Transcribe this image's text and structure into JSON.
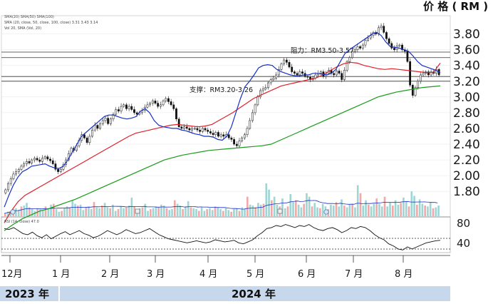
{
  "chart_data": {
    "type": "candlestick",
    "unit_label": "价 格 ( RM )",
    "legend_lines": [
      "SMA(20) SMA(50) SMA(100)",
      "SMA (20, close, 50, close, 100, close) 3.31 3.43 3.14",
      "Vol 20, SMA (Vol, 20)"
    ],
    "price_axis": {
      "ticks": [
        "3.80",
        "3.60",
        "3.40",
        "3.20",
        "3.00",
        "2.80",
        "2.60",
        "2.40",
        "2.20",
        "2.00",
        "1.80"
      ],
      "min": 1.62,
      "max": 3.96
    },
    "rsi_axis": {
      "ticks": [
        "80",
        "40"
      ]
    },
    "rsi_label": "RSI (14, close) 47.0",
    "x_ticks": [
      "12月",
      "1 月",
      "2 月",
      "3 月",
      "4 月",
      "5 月",
      "6 月",
      "7 月",
      "8 月"
    ],
    "years": [
      "2023 年",
      "2024 年"
    ],
    "annotations": {
      "resistance": "阻力：RM3.50-3.57",
      "support": "支撑：RM3.20-3.26"
    },
    "horizontal_levels": [
      3.57,
      3.5,
      3.26,
      3.2
    ],
    "candles_close": [
      1.82,
      1.9,
      1.96,
      2.02,
      2.05,
      2.08,
      2.12,
      2.15,
      2.18,
      2.16,
      2.2,
      2.22,
      2.2,
      2.18,
      2.22,
      2.24,
      2.21,
      2.19,
      2.15,
      2.08,
      2.05,
      2.08,
      2.14,
      2.2,
      2.28,
      2.35,
      2.32,
      2.38,
      2.45,
      2.52,
      2.48,
      2.42,
      2.5,
      2.58,
      2.64,
      2.6,
      2.66,
      2.7,
      2.73,
      2.66,
      2.72,
      2.78,
      2.84,
      2.82,
      2.88,
      2.9,
      2.85,
      2.88,
      2.84,
      2.8,
      2.78,
      2.8,
      2.83,
      2.87,
      2.9,
      2.92,
      2.95,
      2.92,
      2.88,
      2.9,
      2.95,
      2.98,
      2.94,
      2.9,
      2.85,
      2.72,
      2.62,
      2.6,
      2.62,
      2.6,
      2.58,
      2.6,
      2.6,
      2.58,
      2.56,
      2.6,
      2.58,
      2.56,
      2.54,
      2.52,
      2.55,
      2.5,
      2.52,
      2.5,
      2.52,
      2.48,
      2.46,
      2.4,
      2.38,
      2.44,
      2.48,
      2.52,
      2.6,
      2.7,
      2.8,
      2.9,
      3.0,
      3.08,
      3.1,
      3.12,
      3.18,
      3.22,
      3.24,
      3.28,
      3.35,
      3.42,
      3.47,
      3.44,
      3.38,
      3.32,
      3.3,
      3.28,
      3.32,
      3.3,
      3.26,
      3.25,
      3.22,
      3.24,
      3.28,
      3.3,
      3.32,
      3.26,
      3.3,
      3.34,
      3.3,
      3.28,
      3.33,
      3.3,
      3.22,
      3.34,
      3.45,
      3.5,
      3.58,
      3.6,
      3.64,
      3.62,
      3.66,
      3.72,
      3.75,
      3.78,
      3.82,
      3.8,
      3.88,
      3.9,
      3.82,
      3.74,
      3.68,
      3.62,
      3.6,
      3.65,
      3.66,
      3.6,
      3.58,
      3.45,
      3.15,
      3.02,
      3.12,
      3.2,
      3.28,
      3.3,
      3.32,
      3.28,
      3.32,
      3.3,
      3.35,
      3.28
    ],
    "rsi_values": [
      70,
      68,
      72,
      66,
      60,
      58,
      63,
      56,
      52,
      58,
      50,
      55,
      60,
      64,
      58,
      62,
      66,
      60,
      57,
      52,
      55,
      60,
      66,
      62,
      58,
      62,
      68,
      64,
      60,
      62,
      66,
      70,
      64,
      58,
      54,
      50,
      48,
      46,
      44,
      42,
      44,
      46,
      44,
      42,
      44,
      48,
      46,
      44,
      45,
      47,
      42,
      40,
      44,
      48,
      56,
      62,
      70,
      72,
      76,
      74,
      78,
      75,
      72,
      76,
      74,
      78,
      72,
      68,
      66,
      70,
      72,
      68,
      62,
      66,
      72,
      70,
      74,
      72,
      66,
      58,
      52,
      48,
      40,
      36,
      30,
      28,
      34,
      30,
      34,
      38,
      42,
      44,
      46,
      47
    ],
    "ma_20": [
      1.6,
      1.75,
      1.88,
      1.98,
      2.05,
      2.08,
      2.12,
      2.13,
      2.14,
      2.15,
      2.12,
      2.1,
      2.09,
      2.12,
      2.2,
      2.3,
      2.4,
      2.5,
      2.55,
      2.6,
      2.65,
      2.7,
      2.75,
      2.77,
      2.77,
      2.75,
      2.73,
      2.72,
      2.73,
      2.75,
      2.82,
      2.85,
      2.8,
      2.7,
      2.64,
      2.62,
      2.61,
      2.6,
      2.6,
      2.58,
      2.57,
      2.55,
      2.53,
      2.52,
      2.5,
      2.5,
      2.49,
      2.46,
      2.45,
      2.5,
      2.62,
      2.8,
      2.98,
      3.13,
      3.2,
      3.28,
      3.37,
      3.4,
      3.41,
      3.4,
      3.35,
      3.32,
      3.3,
      3.28,
      3.27,
      3.27,
      3.28,
      3.28,
      3.3,
      3.3,
      3.29,
      3.28,
      3.3,
      3.35,
      3.45,
      3.55,
      3.6,
      3.64,
      3.68,
      3.72,
      3.76,
      3.8,
      3.82,
      3.78,
      3.7,
      3.64,
      3.63,
      3.62,
      3.6,
      3.58,
      3.52,
      3.45,
      3.4,
      3.38,
      3.36,
      3.34,
      3.31
    ],
    "ma_50": [
      1.4,
      1.55,
      1.67,
      1.75,
      1.8,
      1.85,
      1.9,
      1.95,
      2.0,
      2.05,
      2.1,
      2.15,
      2.2,
      2.25,
      2.3,
      2.35,
      2.4,
      2.45,
      2.5,
      2.54,
      2.56,
      2.58,
      2.6,
      2.62,
      2.64,
      2.65,
      2.64,
      2.63,
      2.62,
      2.63,
      2.65,
      2.7,
      2.75,
      2.8,
      2.86,
      2.92,
      2.98,
      3.02,
      3.06,
      3.1,
      3.14,
      3.16,
      3.18,
      3.2,
      3.22,
      3.24,
      3.28,
      3.33,
      3.38,
      3.42,
      3.44,
      3.43,
      3.4,
      3.38,
      3.36,
      3.35,
      3.36,
      3.35,
      3.34,
      3.33,
      3.32,
      3.31,
      3.31,
      3.43
    ],
    "ma_100": [
      1.3,
      1.38,
      1.45,
      1.5,
      1.55,
      1.58,
      1.62,
      1.66,
      1.7,
      1.75,
      1.8,
      1.85,
      1.9,
      1.95,
      2.0,
      2.05,
      2.1,
      2.15,
      2.2,
      2.23,
      2.26,
      2.28,
      2.3,
      2.32,
      2.33,
      2.34,
      2.35,
      2.36,
      2.37,
      2.38,
      2.4,
      2.45,
      2.5,
      2.55,
      2.6,
      2.65,
      2.7,
      2.75,
      2.8,
      2.85,
      2.9,
      2.95,
      3.0,
      3.03,
      3.06,
      3.08,
      3.1,
      3.12,
      3.13,
      3.14
    ],
    "volume_bars": [
      3,
      5,
      6,
      8,
      9,
      7,
      11,
      12,
      15,
      10,
      8,
      6,
      9,
      8,
      7,
      11,
      9,
      13,
      14,
      8,
      5,
      6,
      9,
      11,
      10,
      18,
      14,
      12,
      13,
      7,
      10,
      11,
      8,
      16,
      10,
      9,
      12,
      15,
      10,
      9,
      13,
      6,
      8,
      11,
      9,
      10,
      12,
      21,
      11,
      7,
      9,
      10,
      14,
      6,
      8,
      9,
      11,
      10,
      13,
      12,
      9,
      7,
      8,
      18,
      14,
      12,
      8,
      11,
      17,
      10,
      9,
      8,
      6,
      10,
      6,
      8,
      9,
      7,
      11,
      10,
      8,
      6,
      9,
      7,
      5,
      8,
      9,
      6,
      10,
      8,
      22,
      13,
      12,
      10,
      15,
      13,
      14,
      37,
      30,
      18,
      22,
      13,
      11,
      20,
      9,
      11,
      25,
      16,
      18,
      13,
      10,
      14,
      26,
      22,
      11,
      15,
      10,
      9,
      14,
      11,
      8,
      13,
      12,
      16,
      11,
      19,
      12,
      10,
      13,
      14,
      10,
      35,
      26,
      12,
      18,
      13,
      11,
      14,
      20,
      14,
      11,
      22,
      11,
      15,
      12,
      18,
      13,
      15,
      21,
      17,
      11,
      28,
      23,
      13,
      19,
      14,
      12,
      11,
      16,
      9,
      10,
      12
    ]
  }
}
